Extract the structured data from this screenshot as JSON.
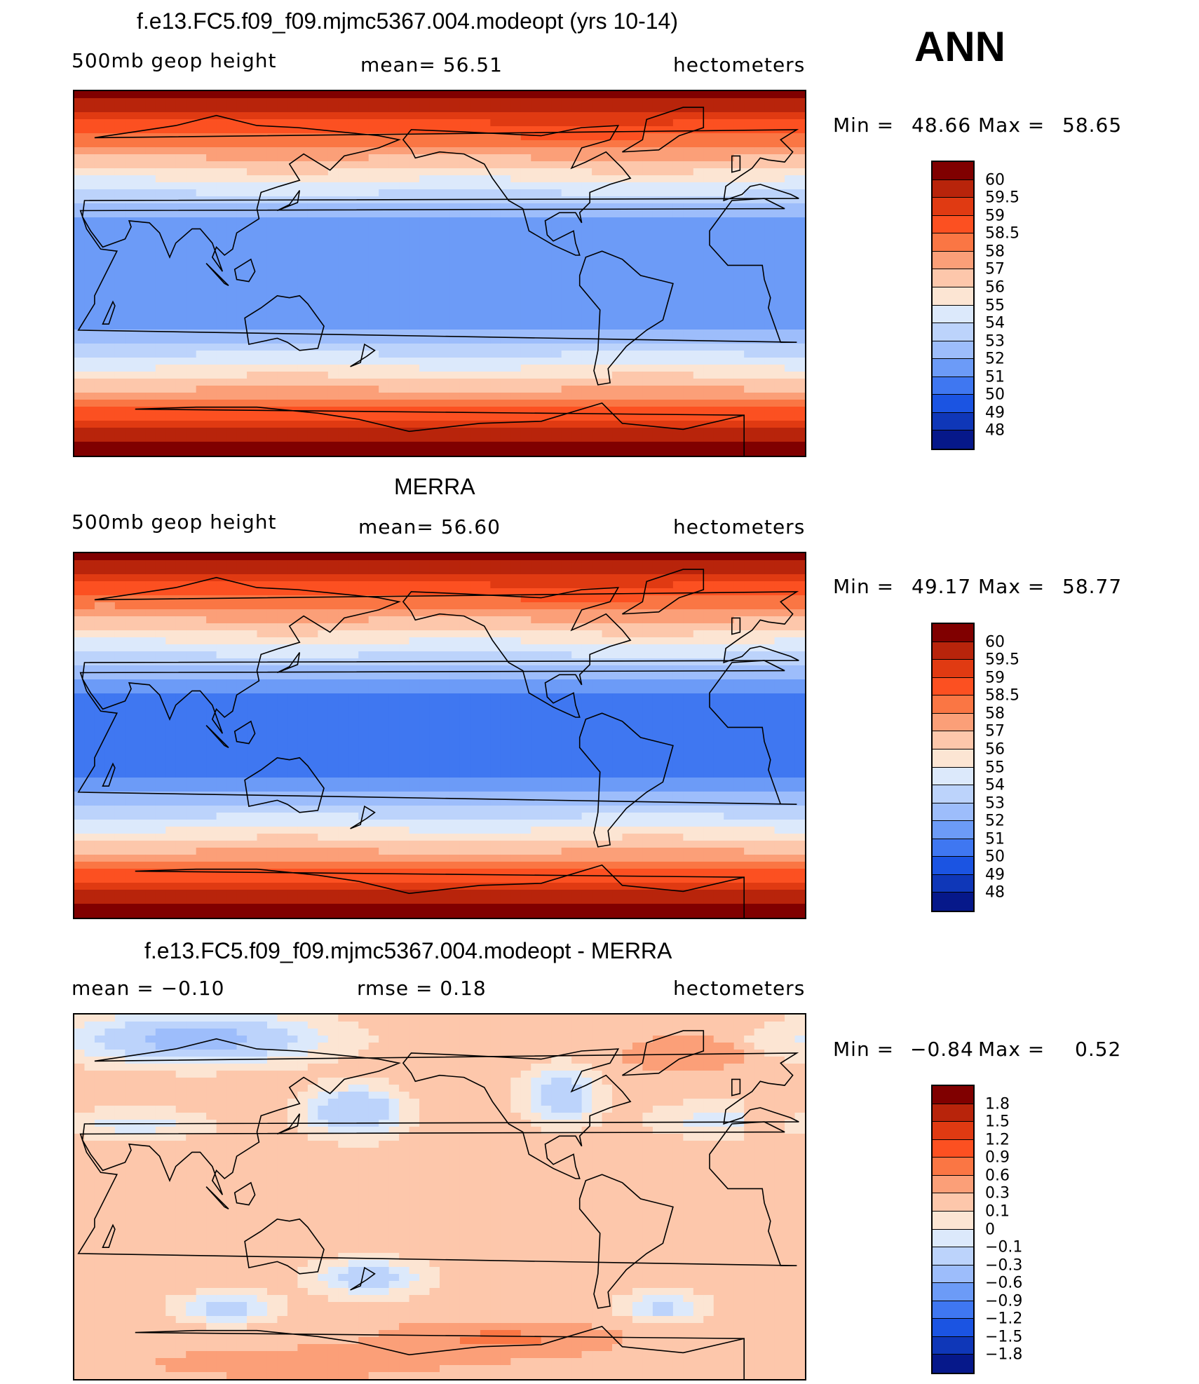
{
  "season": "ANN",
  "panels": [
    {
      "title": "f.e13.FC5.f09_f09.mjmc5367.004.modeopt (yrs 10-14)",
      "left_label": "500mb  geop  height",
      "center_label": "mean=   56.51",
      "right_label": "hectometers",
      "min_label": "Min  =",
      "min_value": "48.66",
      "max_label": "Max  =",
      "max_value": "58.65",
      "stats": {
        "mean": 56.51,
        "min": 48.66,
        "max": 58.65
      },
      "field": "model",
      "colorbar": {
        "labels": [
          "60",
          "59.5",
          "59",
          "58.5",
          "58",
          "57",
          "56",
          "55",
          "54",
          "53",
          "52",
          "51",
          "50",
          "49",
          "48"
        ],
        "colors": [
          "#800000",
          "#b8240b",
          "#e03a12",
          "#fc5021",
          "#fa7644",
          "#fb9f78",
          "#fdc7ab",
          "#fce5d3",
          "#dce9fb",
          "#bcd3fb",
          "#9dbdfb",
          "#6c9bf7",
          "#3f77f1",
          "#1b54e2",
          "#0f37b8",
          "#06188a"
        ]
      }
    },
    {
      "title": "MERRA",
      "left_label": "500mb  geop  height",
      "center_label": "mean=   56.60",
      "right_label": "hectometers",
      "min_label": "Min  =",
      "min_value": "49.17",
      "max_label": "Max  =",
      "max_value": "58.77",
      "stats": {
        "mean": 56.6,
        "min": 49.17,
        "max": 58.77
      },
      "field": "obs",
      "colorbar": {
        "labels": [
          "60",
          "59.5",
          "59",
          "58.5",
          "58",
          "57",
          "56",
          "55",
          "54",
          "53",
          "52",
          "51",
          "50",
          "49",
          "48"
        ],
        "colors": [
          "#800000",
          "#b8240b",
          "#e03a12",
          "#fc5021",
          "#fa7644",
          "#fb9f78",
          "#fdc7ab",
          "#fce5d3",
          "#dce9fb",
          "#bcd3fb",
          "#9dbdfb",
          "#6c9bf7",
          "#3f77f1",
          "#1b54e2",
          "#0f37b8",
          "#06188a"
        ]
      }
    },
    {
      "title": "f.e13.FC5.f09_f09.mjmc5367.004.modeopt - MERRA",
      "left_label": "mean  =    −0.10",
      "center_label": "rmse  =     0.18",
      "right_label": "hectometers",
      "min_label": "Min  =",
      "min_value": "−0.84",
      "max_label": "Max  =",
      "max_value": "0.52",
      "stats": {
        "mean": -0.1,
        "rmse": 0.18,
        "min": -0.84,
        "max": 0.52
      },
      "field": "diff",
      "colorbar": {
        "labels": [
          "1.8",
          "1.5",
          "1.2",
          "0.9",
          "0.6",
          "0.3",
          "0.1",
          "0",
          "−0.1",
          "−0.3",
          "−0.6",
          "−0.9",
          "−1.2",
          "−1.5",
          "−1.8"
        ],
        "colors": [
          "#800000",
          "#b8240b",
          "#e03a12",
          "#fc5021",
          "#fa7644",
          "#fb9f78",
          "#fdc7ab",
          "#fce5d3",
          "#dce9fb",
          "#bcd3fb",
          "#9dbdfb",
          "#6c9bf7",
          "#3f77f1",
          "#1b54e2",
          "#0f37b8",
          "#06188a"
        ]
      }
    }
  ]
}
